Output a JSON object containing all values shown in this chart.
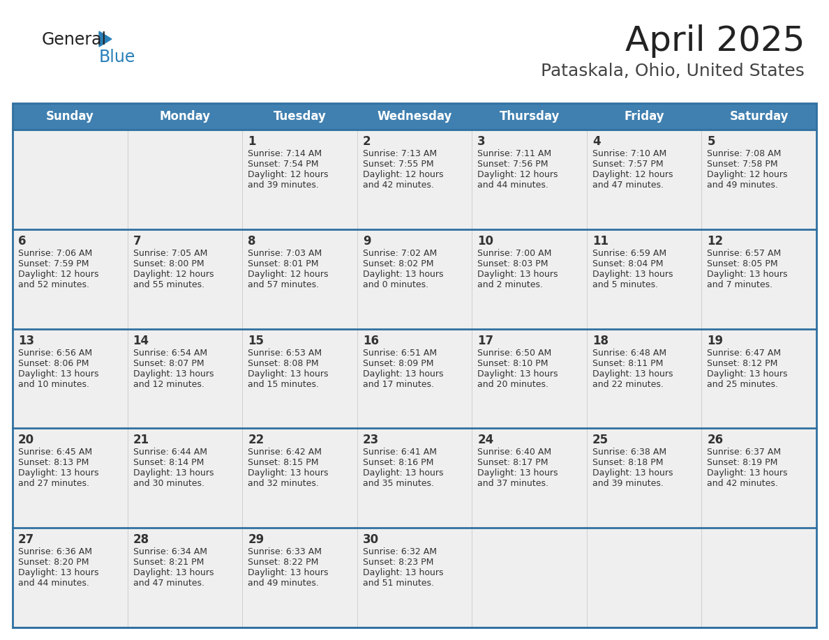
{
  "title": "April 2025",
  "subtitle": "Pataskala, Ohio, United States",
  "header_color": "#4080B0",
  "header_text_color": "#FFFFFF",
  "cell_bg": "#EFEFEF",
  "cell_border_color": "#3070A0",
  "text_color": "#333333",
  "days_of_week": [
    "Sunday",
    "Monday",
    "Tuesday",
    "Wednesday",
    "Thursday",
    "Friday",
    "Saturday"
  ],
  "weeks": [
    [
      {
        "day": "",
        "info": ""
      },
      {
        "day": "",
        "info": ""
      },
      {
        "day": "1",
        "info": "Sunrise: 7:14 AM\nSunset: 7:54 PM\nDaylight: 12 hours\nand 39 minutes."
      },
      {
        "day": "2",
        "info": "Sunrise: 7:13 AM\nSunset: 7:55 PM\nDaylight: 12 hours\nand 42 minutes."
      },
      {
        "day": "3",
        "info": "Sunrise: 7:11 AM\nSunset: 7:56 PM\nDaylight: 12 hours\nand 44 minutes."
      },
      {
        "day": "4",
        "info": "Sunrise: 7:10 AM\nSunset: 7:57 PM\nDaylight: 12 hours\nand 47 minutes."
      },
      {
        "day": "5",
        "info": "Sunrise: 7:08 AM\nSunset: 7:58 PM\nDaylight: 12 hours\nand 49 minutes."
      }
    ],
    [
      {
        "day": "6",
        "info": "Sunrise: 7:06 AM\nSunset: 7:59 PM\nDaylight: 12 hours\nand 52 minutes."
      },
      {
        "day": "7",
        "info": "Sunrise: 7:05 AM\nSunset: 8:00 PM\nDaylight: 12 hours\nand 55 minutes."
      },
      {
        "day": "8",
        "info": "Sunrise: 7:03 AM\nSunset: 8:01 PM\nDaylight: 12 hours\nand 57 minutes."
      },
      {
        "day": "9",
        "info": "Sunrise: 7:02 AM\nSunset: 8:02 PM\nDaylight: 13 hours\nand 0 minutes."
      },
      {
        "day": "10",
        "info": "Sunrise: 7:00 AM\nSunset: 8:03 PM\nDaylight: 13 hours\nand 2 minutes."
      },
      {
        "day": "11",
        "info": "Sunrise: 6:59 AM\nSunset: 8:04 PM\nDaylight: 13 hours\nand 5 minutes."
      },
      {
        "day": "12",
        "info": "Sunrise: 6:57 AM\nSunset: 8:05 PM\nDaylight: 13 hours\nand 7 minutes."
      }
    ],
    [
      {
        "day": "13",
        "info": "Sunrise: 6:56 AM\nSunset: 8:06 PM\nDaylight: 13 hours\nand 10 minutes."
      },
      {
        "day": "14",
        "info": "Sunrise: 6:54 AM\nSunset: 8:07 PM\nDaylight: 13 hours\nand 12 minutes."
      },
      {
        "day": "15",
        "info": "Sunrise: 6:53 AM\nSunset: 8:08 PM\nDaylight: 13 hours\nand 15 minutes."
      },
      {
        "day": "16",
        "info": "Sunrise: 6:51 AM\nSunset: 8:09 PM\nDaylight: 13 hours\nand 17 minutes."
      },
      {
        "day": "17",
        "info": "Sunrise: 6:50 AM\nSunset: 8:10 PM\nDaylight: 13 hours\nand 20 minutes."
      },
      {
        "day": "18",
        "info": "Sunrise: 6:48 AM\nSunset: 8:11 PM\nDaylight: 13 hours\nand 22 minutes."
      },
      {
        "day": "19",
        "info": "Sunrise: 6:47 AM\nSunset: 8:12 PM\nDaylight: 13 hours\nand 25 minutes."
      }
    ],
    [
      {
        "day": "20",
        "info": "Sunrise: 6:45 AM\nSunset: 8:13 PM\nDaylight: 13 hours\nand 27 minutes."
      },
      {
        "day": "21",
        "info": "Sunrise: 6:44 AM\nSunset: 8:14 PM\nDaylight: 13 hours\nand 30 minutes."
      },
      {
        "day": "22",
        "info": "Sunrise: 6:42 AM\nSunset: 8:15 PM\nDaylight: 13 hours\nand 32 minutes."
      },
      {
        "day": "23",
        "info": "Sunrise: 6:41 AM\nSunset: 8:16 PM\nDaylight: 13 hours\nand 35 minutes."
      },
      {
        "day": "24",
        "info": "Sunrise: 6:40 AM\nSunset: 8:17 PM\nDaylight: 13 hours\nand 37 minutes."
      },
      {
        "day": "25",
        "info": "Sunrise: 6:38 AM\nSunset: 8:18 PM\nDaylight: 13 hours\nand 39 minutes."
      },
      {
        "day": "26",
        "info": "Sunrise: 6:37 AM\nSunset: 8:19 PM\nDaylight: 13 hours\nand 42 minutes."
      }
    ],
    [
      {
        "day": "27",
        "info": "Sunrise: 6:36 AM\nSunset: 8:20 PM\nDaylight: 13 hours\nand 44 minutes."
      },
      {
        "day": "28",
        "info": "Sunrise: 6:34 AM\nSunset: 8:21 PM\nDaylight: 13 hours\nand 47 minutes."
      },
      {
        "day": "29",
        "info": "Sunrise: 6:33 AM\nSunset: 8:22 PM\nDaylight: 13 hours\nand 49 minutes."
      },
      {
        "day": "30",
        "info": "Sunrise: 6:32 AM\nSunset: 8:23 PM\nDaylight: 13 hours\nand 51 minutes."
      },
      {
        "day": "",
        "info": ""
      },
      {
        "day": "",
        "info": ""
      },
      {
        "day": "",
        "info": ""
      }
    ]
  ],
  "logo_color_general": "#222222",
  "logo_color_blue": "#2980B9",
  "logo_triangle_color": "#2980B9",
  "title_fontsize": 36,
  "subtitle_fontsize": 18,
  "header_fontsize": 12,
  "day_num_fontsize": 12,
  "info_fontsize": 9
}
